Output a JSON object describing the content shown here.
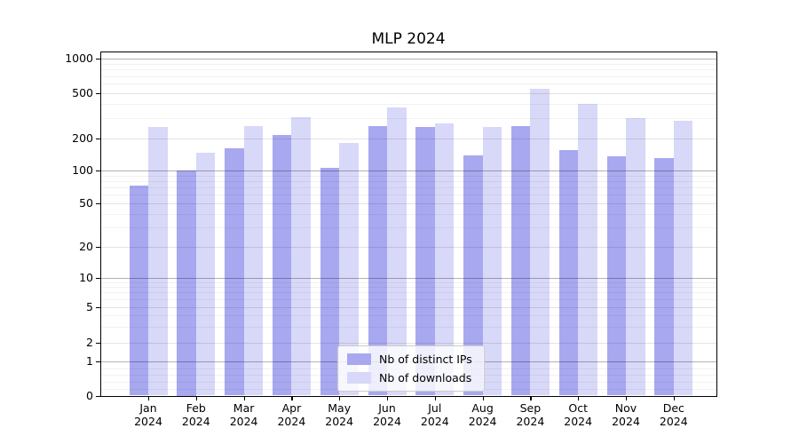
{
  "chart_data": {
    "type": "bar",
    "title": "MLP 2024",
    "year": "2024",
    "months": [
      "Jan",
      "Feb",
      "Mar",
      "Apr",
      "May",
      "Jun",
      "Jul",
      "Aug",
      "Sep",
      "Oct",
      "Nov",
      "Dec"
    ],
    "categories": [
      "Jan 2024",
      "Feb 2024",
      "Mar 2024",
      "Apr 2024",
      "May 2024",
      "Jun 2024",
      "Jul 2024",
      "Aug 2024",
      "Sep 2024",
      "Oct 2024",
      "Nov 2024",
      "Dec 2024"
    ],
    "series": [
      {
        "name": "Nb of distinct IPs",
        "color": "#a8a8f0",
        "values": [
          73,
          100,
          162,
          215,
          106,
          255,
          250,
          140,
          255,
          155,
          135,
          130
        ]
      },
      {
        "name": "Nb of downloads",
        "color": "#d8d8f8",
        "values": [
          250,
          148,
          255,
          305,
          180,
          375,
          270,
          250,
          540,
          400,
          300,
          285
        ]
      }
    ],
    "y_ticks": [
      0,
      1,
      2,
      5,
      10,
      20,
      50,
      100,
      200,
      500,
      1000
    ],
    "y_scale": "symlog",
    "ylim": [
      0,
      1000
    ],
    "grid": "on",
    "legend_position": "lower center"
  }
}
